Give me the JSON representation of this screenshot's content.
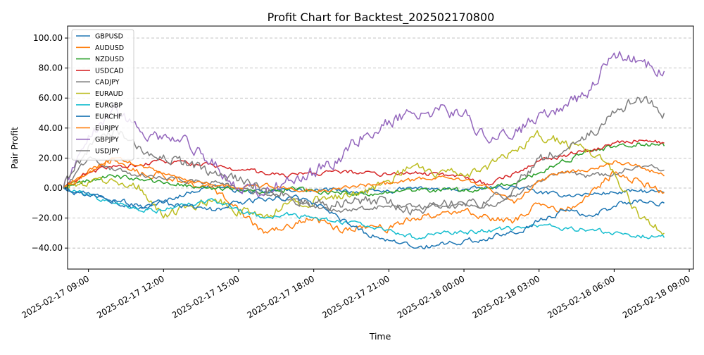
{
  "chart_data": {
    "type": "line",
    "title": "Profit Chart for Backtest_202502170800",
    "xlabel": "Time",
    "ylabel": "Pair Profit",
    "xlim": [
      "2025-02-17 08:10",
      "2025-02-18 09:10"
    ],
    "ylim": [
      -54,
      108
    ],
    "y_ticks": [
      -40,
      -20,
      0,
      20,
      40,
      60,
      80,
      100
    ],
    "y_tick_labels": [
      "−40.00",
      "−20.00",
      "0.00",
      "20.00",
      "40.00",
      "60.00",
      "80.00",
      "100.00"
    ],
    "x_ticks": [
      "2025-02-17 09:00",
      "2025-02-17 12:00",
      "2025-02-17 15:00",
      "2025-02-17 18:00",
      "2025-02-17 21:00",
      "2025-02-18 00:00",
      "2025-02-18 03:00",
      "2025-02-18 06:00",
      "2025-02-18 09:00"
    ],
    "x_tick_labels": [
      "2025-02-17 09:00",
      "2025-02-17 12:00",
      "2025-02-17 15:00",
      "2025-02-17 18:00",
      "2025-02-17 21:00",
      "2025-02-18 00:00",
      "2025-02-18 03:00",
      "2025-02-18 06:00",
      "2025-02-18 09:00"
    ],
    "grid": "y-dashed",
    "legend_position": "top-left",
    "x": [
      "2025-02-17 08:00",
      "2025-02-17 09:00",
      "2025-02-17 10:00",
      "2025-02-17 11:00",
      "2025-02-17 12:00",
      "2025-02-17 13:00",
      "2025-02-17 14:00",
      "2025-02-17 15:00",
      "2025-02-17 16:00",
      "2025-02-17 17:00",
      "2025-02-17 18:00",
      "2025-02-17 19:00",
      "2025-02-17 20:00",
      "2025-02-17 21:00",
      "2025-02-17 22:00",
      "2025-02-17 23:00",
      "2025-02-18 00:00",
      "2025-02-18 01:00",
      "2025-02-18 02:00",
      "2025-02-18 03:00",
      "2025-02-18 04:00",
      "2025-02-18 05:00",
      "2025-02-18 06:00",
      "2025-02-18 07:00",
      "2025-02-18 08:00"
    ],
    "series": [
      {
        "name": "GBPUSD",
        "color": "#1f77b4",
        "values": [
          0,
          -3,
          -8,
          -14,
          -9,
          -3,
          2,
          -2,
          -3,
          -1,
          -2,
          -1,
          -3,
          -2,
          0,
          -1,
          -1,
          0,
          1,
          -3,
          -5,
          -4,
          -3,
          -2,
          -3
        ]
      },
      {
        "name": "AUDUSD",
        "color": "#ff7f0e",
        "values": [
          0,
          12,
          20,
          10,
          8,
          3,
          0,
          -15,
          -30,
          -25,
          -20,
          -28,
          -25,
          -27,
          -20,
          -18,
          -15,
          -20,
          -22,
          -10,
          -15,
          -5,
          10,
          5,
          -3
        ]
      },
      {
        "name": "NZDUSD",
        "color": "#2ca02c",
        "values": [
          0,
          5,
          8,
          6,
          3,
          2,
          0,
          -2,
          -3,
          -1,
          -2,
          -3,
          -4,
          -3,
          -2,
          -1,
          -2,
          0,
          3,
          10,
          18,
          25,
          28,
          30,
          28
        ]
      },
      {
        "name": "USDCAD",
        "color": "#d62728",
        "values": [
          0,
          10,
          15,
          15,
          18,
          16,
          15,
          12,
          10,
          8,
          10,
          11,
          10,
          9,
          10,
          9,
          8,
          2,
          10,
          18,
          22,
          25,
          30,
          32,
          30
        ]
      },
      {
        "name": "CADJPY",
        "color": "#7f7f7f",
        "values": [
          0,
          20,
          12,
          8,
          6,
          5,
          4,
          0,
          -5,
          -8,
          -12,
          -15,
          -14,
          -12,
          -12,
          -13,
          -10,
          -12,
          -5,
          5,
          10,
          8,
          10,
          15,
          12
        ]
      },
      {
        "name": "EURAUD",
        "color": "#bcbd22",
        "values": [
          0,
          4,
          5,
          2,
          -20,
          -12,
          -8,
          -15,
          -20,
          -10,
          -8,
          -5,
          -3,
          5,
          15,
          10,
          8,
          15,
          25,
          35,
          30,
          25,
          10,
          -20,
          -30
        ]
      },
      {
        "name": "EURGBP",
        "color": "#17becf",
        "values": [
          0,
          -5,
          -10,
          -15,
          -15,
          -10,
          -8,
          -15,
          -20,
          -18,
          -20,
          -22,
          -25,
          -28,
          -33,
          -30,
          -30,
          -28,
          -27,
          -25,
          -27,
          -28,
          -30,
          -32,
          -33
        ]
      },
      {
        "name": "EURCHF",
        "color": "#1f77b4",
        "values": [
          0,
          -5,
          -8,
          -12,
          -10,
          -12,
          -15,
          -10,
          -8,
          -6,
          -10,
          -20,
          -30,
          -35,
          -40,
          -38,
          -35,
          -33,
          -30,
          -22,
          -15,
          -18,
          -12,
          -8,
          -10
        ]
      },
      {
        "name": "EURJPY",
        "color": "#ff7f0e",
        "values": [
          0,
          10,
          20,
          15,
          10,
          5,
          2,
          0,
          2,
          0,
          -2,
          0,
          2,
          3,
          5,
          8,
          5,
          0,
          -10,
          5,
          10,
          12,
          18,
          15,
          8
        ]
      },
      {
        "name": "GBPJPY",
        "color": "#9467bd",
        "values": [
          0,
          35,
          55,
          40,
          35,
          30,
          15,
          0,
          -5,
          5,
          10,
          20,
          35,
          45,
          50,
          52,
          50,
          30,
          35,
          50,
          55,
          65,
          90,
          85,
          78
        ]
      },
      {
        "name": "USDJPY",
        "color": "#7f7f7f",
        "values": [
          0,
          28,
          38,
          28,
          22,
          15,
          10,
          5,
          0,
          -5,
          -12,
          -10,
          -8,
          -10,
          -15,
          -12,
          -10,
          -8,
          0,
          20,
          25,
          35,
          50,
          60,
          50
        ]
      }
    ]
  }
}
